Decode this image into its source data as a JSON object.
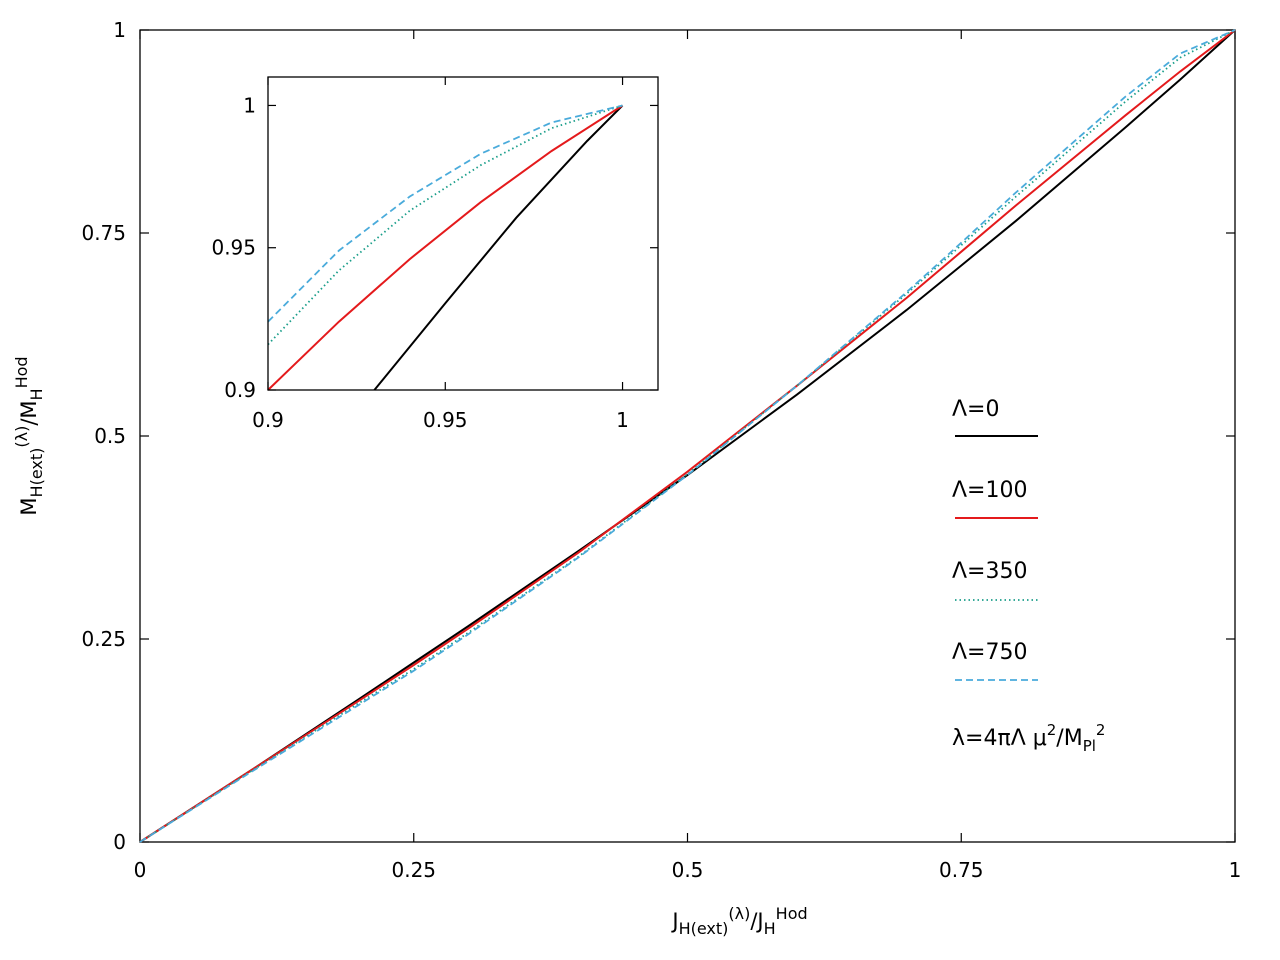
{
  "chart_data": {
    "type": "line",
    "xlabel": {
      "base": "J",
      "sub": "H(ext)",
      "sup": "(λ)",
      "slash": "/",
      "base2": "J",
      "sub2": "H",
      "sup2": "Hod"
    },
    "ylabel": {
      "base": "M",
      "sub": "H(ext)",
      "sup": "(λ)",
      "slash": "/",
      "base2": "M",
      "sub2": "H",
      "sup2": "Hod"
    },
    "xlim": [
      0,
      1
    ],
    "ylim": [
      0,
      1
    ],
    "xticks": [
      "0",
      "0.25",
      "0.5",
      "0.75",
      "1"
    ],
    "yticks": [
      "0",
      "0.25",
      "0.5",
      "0.75",
      "1"
    ],
    "grid": false,
    "legend_placement": "right",
    "series": [
      {
        "name": "Λ=0",
        "color": "#000000",
        "style": "solid",
        "x": [
          0,
          0.1,
          0.2,
          0.25,
          0.3,
          0.4,
          0.5,
          0.6,
          0.7,
          0.75,
          0.8,
          0.9,
          0.95,
          1.0
        ],
        "y": [
          0,
          0.087,
          0.176,
          0.221,
          0.266,
          0.358,
          0.452,
          0.551,
          0.655,
          0.71,
          0.765,
          0.88,
          0.939,
          1.0
        ]
      },
      {
        "name": "Λ=100",
        "color": "#e41a1c",
        "style": "solid",
        "x": [
          0,
          0.1,
          0.2,
          0.25,
          0.3,
          0.4,
          0.5,
          0.6,
          0.7,
          0.75,
          0.8,
          0.9,
          0.95,
          1.0
        ],
        "y": [
          0,
          0.087,
          0.174,
          0.218,
          0.263,
          0.356,
          0.456,
          0.562,
          0.67,
          0.727,
          0.784,
          0.895,
          0.949,
          1.0
        ]
      },
      {
        "name": "Λ=350",
        "color": "#1a9e8a",
        "style": "dotted",
        "x": [
          0,
          0.1,
          0.2,
          0.25,
          0.3,
          0.4,
          0.5,
          0.6,
          0.7,
          0.75,
          0.8,
          0.9,
          0.95,
          1.0
        ],
        "y": [
          0,
          0.086,
          0.171,
          0.213,
          0.258,
          0.351,
          0.453,
          0.562,
          0.675,
          0.735,
          0.795,
          0.912,
          0.966,
          1.0
        ]
      },
      {
        "name": "Λ=750",
        "color": "#4aabdb",
        "style": "dashed",
        "x": [
          0,
          0.1,
          0.2,
          0.25,
          0.3,
          0.4,
          0.5,
          0.6,
          0.7,
          0.75,
          0.8,
          0.9,
          0.95,
          1.0
        ],
        "y": [
          0,
          0.085,
          0.169,
          0.211,
          0.256,
          0.35,
          0.452,
          0.562,
          0.677,
          0.738,
          0.8,
          0.918,
          0.971,
          1.0
        ]
      }
    ],
    "legend_note": {
      "text1": "λ=4πΛ μ",
      "sup1": "2",
      "text2": "/M",
      "sub2": "Pl",
      "sup2": "2"
    },
    "inset": {
      "xlim": [
        0.9,
        1.01
      ],
      "ylim": [
        0.9,
        1.01
      ],
      "xticks": [
        "0.9",
        "0.95",
        "1"
      ],
      "yticks": [
        "0.9",
        "0.95",
        "1"
      ],
      "series": [
        {
          "name": "Λ=0",
          "x": [
            0.93,
            0.95,
            0.97,
            0.99,
            1.0
          ],
          "y": [
            0.9,
            0.9305,
            0.9605,
            0.9875,
            1.0
          ]
        },
        {
          "name": "Λ=100",
          "x": [
            0.9,
            0.92,
            0.94,
            0.96,
            0.98,
            1.0
          ],
          "y": [
            0.9,
            0.924,
            0.946,
            0.966,
            0.984,
            1.0
          ]
        },
        {
          "name": "Λ=350",
          "x": [
            0.9,
            0.92,
            0.94,
            0.96,
            0.98,
            1.0
          ],
          "y": [
            0.916,
            0.942,
            0.963,
            0.979,
            0.992,
            1.0
          ]
        },
        {
          "name": "Λ=750",
          "x": [
            0.9,
            0.92,
            0.94,
            0.96,
            0.98,
            1.0
          ],
          "y": [
            0.924,
            0.949,
            0.968,
            0.983,
            0.994,
            1.0
          ]
        }
      ]
    }
  }
}
